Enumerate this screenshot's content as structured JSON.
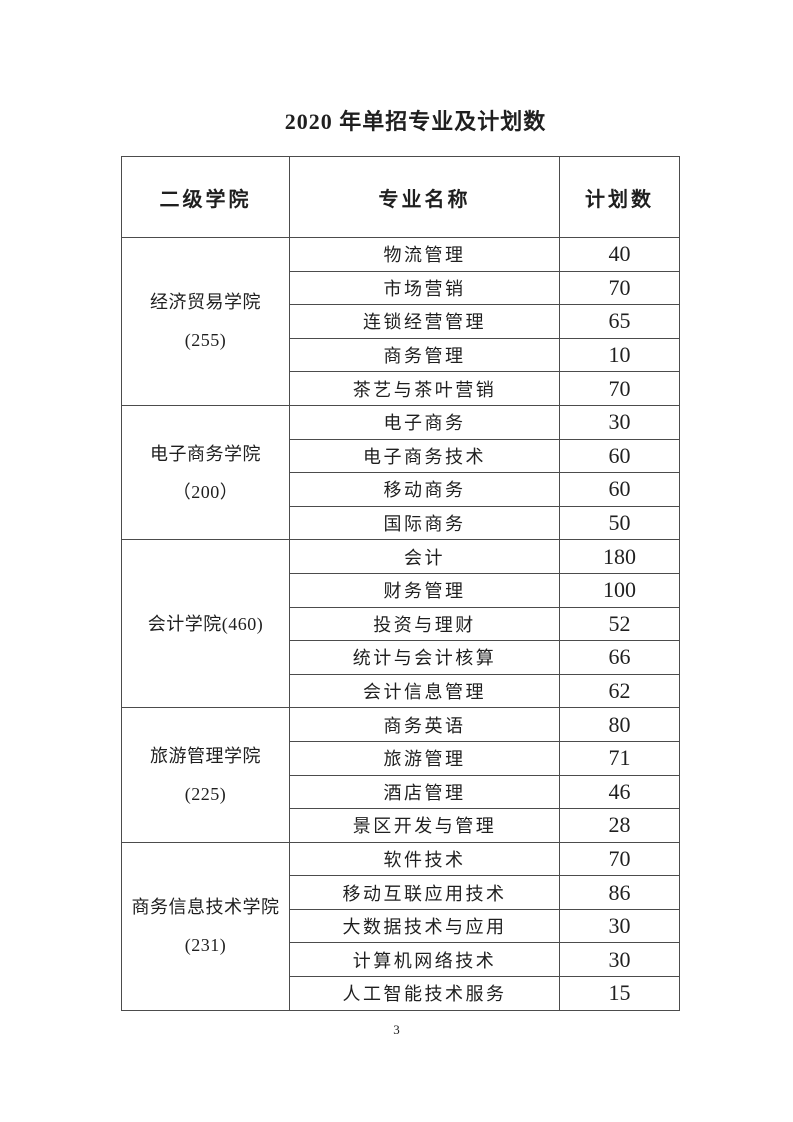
{
  "page": {
    "title": "2020 年单招专业及计划数",
    "page_number": "3"
  },
  "colors": {
    "text": "#1f1f1f",
    "border": "#4c4c4c",
    "background": "#ffffff"
  },
  "table": {
    "headers": [
      "二级学院",
      "专业名称",
      "计划数"
    ],
    "sections": [
      {
        "college_name": "经济贸易学院",
        "college_count": "(255)",
        "rows": [
          {
            "major": "物流管理",
            "plan": "40"
          },
          {
            "major": "市场营销",
            "plan": "70"
          },
          {
            "major": "连锁经营管理",
            "plan": "65"
          },
          {
            "major": "商务管理",
            "plan": "10"
          },
          {
            "major": "茶艺与茶叶营销",
            "plan": "70"
          }
        ]
      },
      {
        "college_name": "电子商务学院",
        "college_count": "（200）",
        "rows": [
          {
            "major": "电子商务",
            "plan": "30"
          },
          {
            "major": "电子商务技术",
            "plan": "60"
          },
          {
            "major": "移动商务",
            "plan": "60"
          },
          {
            "major": "国际商务",
            "plan": "50"
          }
        ]
      },
      {
        "college_name": "会计学院(460)",
        "college_count": "",
        "rows": [
          {
            "major": "会计",
            "plan": "180"
          },
          {
            "major": "财务管理",
            "plan": "100"
          },
          {
            "major": "投资与理财",
            "plan": "52"
          },
          {
            "major": "统计与会计核算",
            "plan": "66"
          },
          {
            "major": "会计信息管理",
            "plan": "62"
          }
        ]
      },
      {
        "college_name": "旅游管理学院",
        "college_count": "(225)",
        "rows": [
          {
            "major": "商务英语",
            "plan": "80"
          },
          {
            "major": "旅游管理",
            "plan": "71"
          },
          {
            "major": "酒店管理",
            "plan": "46"
          },
          {
            "major": "景区开发与管理",
            "plan": "28"
          }
        ]
      },
      {
        "college_name": "商务信息技术学院",
        "college_count": "(231)",
        "rows": [
          {
            "major": "软件技术",
            "plan": "70"
          },
          {
            "major": "移动互联应用技术",
            "plan": "86"
          },
          {
            "major": "大数据技术与应用",
            "plan": "30"
          },
          {
            "major": "计算机网络技术",
            "plan": "30"
          },
          {
            "major": "人工智能技术服务",
            "plan": "15"
          }
        ]
      }
    ]
  }
}
